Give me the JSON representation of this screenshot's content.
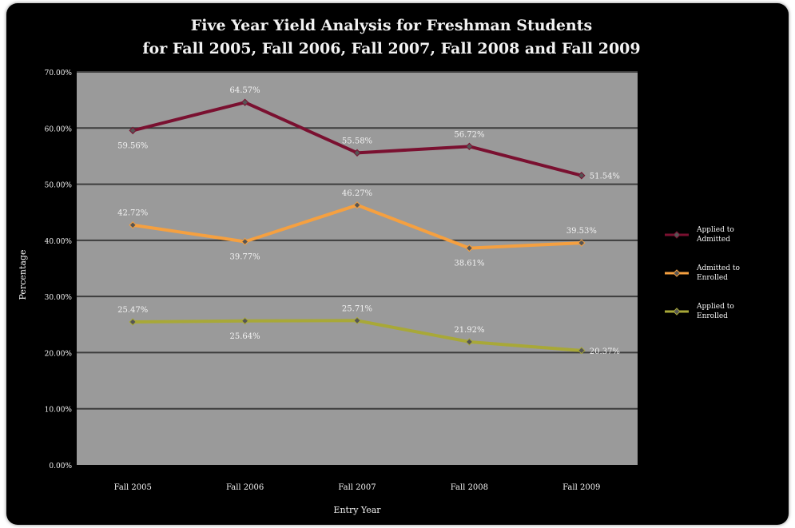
{
  "chart_data": {
    "type": "line",
    "title_line1": "Five Year Yield Analysis for Freshman Students",
    "title_line2": "for Fall 2005, Fall 2006, Fall 2007, Fall 2008 and Fall 2009",
    "xlabel": "Entry Year",
    "ylabel": "Percentage",
    "ylim": [
      0,
      70
    ],
    "yticks": [
      "0.00%",
      "10.00%",
      "20.00%",
      "30.00%",
      "40.00%",
      "50.00%",
      "60.00%",
      "70.00%"
    ],
    "categories": [
      "Fall 2005",
      "Fall 2006",
      "Fall 2007",
      "Fall 2008",
      "Fall 2009"
    ],
    "grid": true,
    "legend_position": "right",
    "colors": {
      "frame": "#000000",
      "plot": "#9a9a9a",
      "grid": "#3c3c3c",
      "text": "#f2f2f2"
    },
    "series": [
      {
        "name": "Applied to Admitted",
        "color": "#7a1030",
        "values": [
          59.56,
          64.57,
          55.58,
          56.72,
          51.54
        ],
        "labels": [
          "59.56%",
          "64.57%",
          "55.58%",
          "56.72%",
          "51.54%"
        ]
      },
      {
        "name": "Admitted to Enrolled",
        "color": "#f5a040",
        "values": [
          42.72,
          39.77,
          46.27,
          38.61,
          39.53
        ],
        "labels": [
          "42.72%",
          "39.77%",
          "46.27%",
          "38.61%",
          "39.53%"
        ]
      },
      {
        "name": "Applied to Enrolled",
        "color": "#a8a838",
        "values": [
          25.47,
          25.64,
          25.71,
          21.92,
          20.37
        ],
        "labels": [
          "25.47%",
          "25.64%",
          "25.71%",
          "21.92%",
          "20.37%"
        ]
      }
    ]
  }
}
